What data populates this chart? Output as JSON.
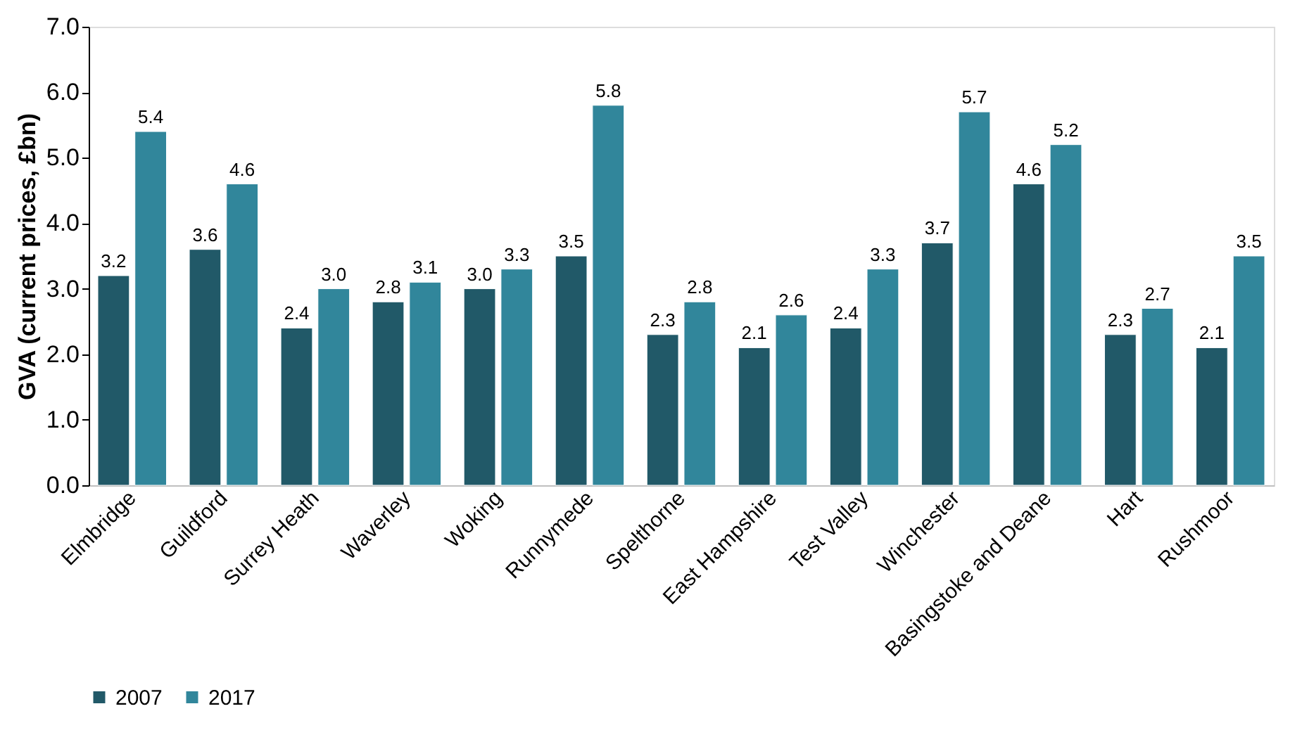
{
  "chart_data": {
    "type": "bar",
    "ylabel": "GVA (current prices, £bn)",
    "categories": [
      "Elmbridge",
      "Guildford",
      "Surrey Heath",
      "Waverley",
      "Woking",
      "Runnymede",
      "Spelthorne",
      "East Hampshire",
      "Test Valley",
      "Winchester",
      "Basingstoke and Deane",
      "Hart",
      "Rushmoor"
    ],
    "series": [
      {
        "name": "2007",
        "color": "#215968",
        "values": [
          3.2,
          3.6,
          2.4,
          2.8,
          3.0,
          3.5,
          2.3,
          2.1,
          2.4,
          3.7,
          4.6,
          2.3,
          2.1
        ],
        "value_labels": [
          "3.2",
          "3.6",
          "2.4",
          "2.8",
          "3.0",
          "3.5",
          "2.3",
          "2.1",
          "2.4",
          "3.7",
          "4.6",
          "2.3",
          "2.1"
        ]
      },
      {
        "name": "2017",
        "color": "#31869b",
        "values": [
          5.4,
          4.6,
          3.0,
          3.1,
          3.3,
          5.8,
          2.8,
          2.6,
          3.3,
          5.7,
          5.2,
          2.7,
          3.5
        ],
        "value_labels": [
          "5.4",
          "4.6",
          "3.0",
          "3.1",
          "3.3",
          "5.8",
          "2.8",
          "2.6",
          "3.3",
          "5.7",
          "5.2",
          "2.7",
          "3.5"
        ]
      }
    ],
    "ylim": [
      0,
      7
    ],
    "yticks": [
      {
        "value": 0,
        "label": "0.0"
      },
      {
        "value": 1,
        "label": "1.0"
      },
      {
        "value": 2,
        "label": "2.0"
      },
      {
        "value": 3,
        "label": "3.0"
      },
      {
        "value": 4,
        "label": "4.0"
      },
      {
        "value": 5,
        "label": "5.0"
      },
      {
        "value": 6,
        "label": "6.0"
      },
      {
        "value": 7,
        "label": "7.0"
      }
    ],
    "grid": false,
    "legend": "bottom"
  }
}
